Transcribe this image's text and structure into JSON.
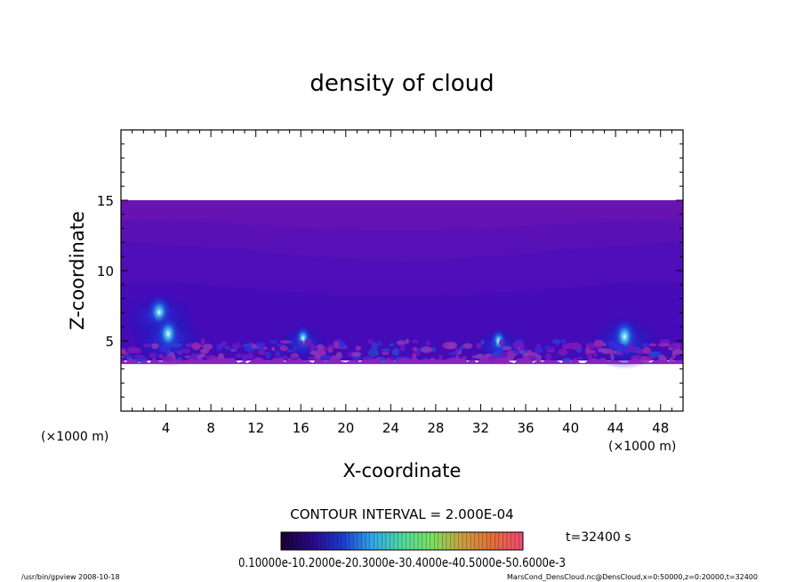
{
  "chart_data": {
    "type": "heatmap",
    "title": "density of cloud",
    "xlabel": "X-coordinate",
    "ylabel": "Z-coordinate",
    "x_unit": "(×1000 m)",
    "y_unit": "(×1000 m)",
    "xlim": [
      0,
      50
    ],
    "ylim": [
      0,
      20
    ],
    "x_ticks": [
      4,
      8,
      12,
      16,
      20,
      24,
      28,
      32,
      36,
      40,
      44,
      48
    ],
    "y_ticks": [
      5,
      10,
      15
    ],
    "field_z_range": [
      3.6,
      15
    ],
    "cloud_features": [
      {
        "x": 3.4,
        "z": 7.0,
        "intensity": "high"
      },
      {
        "x": 4.2,
        "z": 5.5,
        "intensity": "high"
      },
      {
        "x": 16.2,
        "z": 5.2,
        "intensity": "medium"
      },
      {
        "x": 33.6,
        "z": 5.0,
        "intensity": "medium"
      },
      {
        "x": 44.8,
        "z": 5.3,
        "intensity": "high"
      }
    ],
    "contour_interval": "CONTOUR INTERVAL = 2.000E-04",
    "colorbar_labels": "0.10000e-10.2000e-20.3000e-30.4000e-40.5000e-50.6000e-3",
    "colorbar_colors": [
      "#1a0033",
      "#2a0a8a",
      "#1c3ad0",
      "#2fa8e8",
      "#4fd8a0",
      "#7be060",
      "#c8a040",
      "#e07038",
      "#f04a70"
    ],
    "time": "t=32400 s"
  },
  "footer": {
    "left": "/usr/bin/gpview   2008-10-18",
    "right": "MarsCond_DensCloud.nc@DensCloud,x=0:50000,z=0:20000,t=32400"
  }
}
